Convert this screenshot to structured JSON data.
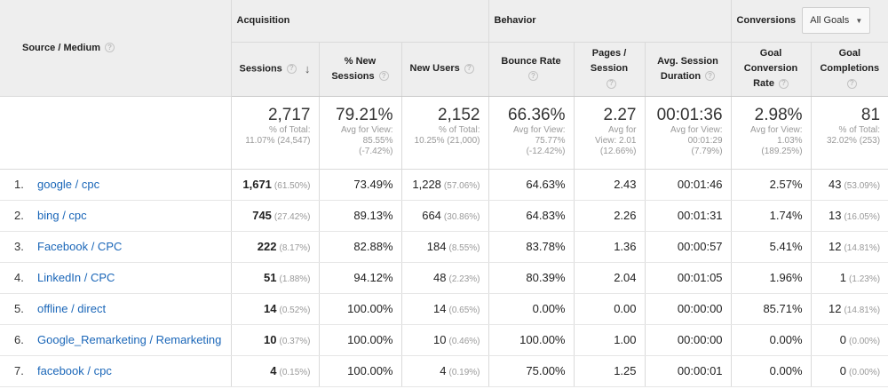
{
  "header": {
    "source_medium": "Source / Medium",
    "acquisition": "Acquisition",
    "behavior": "Behavior",
    "conversions": "Conversions",
    "goal_select_value": "All Goals",
    "columns": {
      "sessions": "Sessions",
      "new_sessions_1": "% New",
      "new_sessions_2": "Sessions",
      "new_users": "New Users",
      "bounce_rate": "Bounce Rate",
      "pages_session_1": "Pages /",
      "pages_session_2": "Session",
      "avg_duration_1": "Avg. Session",
      "avg_duration_2": "Duration",
      "goal_conv_1": "Goal",
      "goal_conv_2": "Conversion",
      "goal_conv_3": "Rate",
      "goal_compl_1": "Goal",
      "goal_compl_2": "Completions"
    }
  },
  "totals": {
    "sessions": {
      "value": "2,717",
      "sub1": "% of Total:",
      "sub2": "11.07% (24,547)"
    },
    "new_sessions": {
      "value": "79.21%",
      "sub1": "Avg for View:",
      "sub2": "85.55%",
      "sub3": "(-7.42%)"
    },
    "new_users": {
      "value": "2,152",
      "sub1": "% of Total:",
      "sub2": "10.25% (21,000)"
    },
    "bounce_rate": {
      "value": "66.36%",
      "sub1": "Avg for View:",
      "sub2": "75.77%",
      "sub3": "(-12.42%)"
    },
    "pages_session": {
      "value": "2.27",
      "sub1": "Avg for",
      "sub2": "View: 2.01",
      "sub3": "(12.66%)"
    },
    "avg_duration": {
      "value": "00:01:36",
      "sub1": "Avg for View:",
      "sub2": "00:01:29",
      "sub3": "(7.79%)"
    },
    "goal_conv": {
      "value": "2.98%",
      "sub1": "Avg for View:",
      "sub2": "1.03%",
      "sub3": "(189.25%)"
    },
    "goal_compl": {
      "value": "81",
      "sub1": "% of Total:",
      "sub2": "32.02% (253)"
    }
  },
  "rows": [
    {
      "num": "1.",
      "source": "google / cpc",
      "sessions": "1,671",
      "sessions_pct": "(61.50%)",
      "new_sessions": "73.49%",
      "new_users": "1,228",
      "new_users_pct": "(57.06%)",
      "bounce": "64.63%",
      "pages": "2.43",
      "duration": "00:01:46",
      "conv_rate": "2.57%",
      "completions": "43",
      "completions_pct": "(53.09%)"
    },
    {
      "num": "2.",
      "source": "bing / cpc",
      "sessions": "745",
      "sessions_pct": "(27.42%)",
      "new_sessions": "89.13%",
      "new_users": "664",
      "new_users_pct": "(30.86%)",
      "bounce": "64.83%",
      "pages": "2.26",
      "duration": "00:01:31",
      "conv_rate": "1.74%",
      "completions": "13",
      "completions_pct": "(16.05%)"
    },
    {
      "num": "3.",
      "source": "Facebook / CPC",
      "sessions": "222",
      "sessions_pct": "(8.17%)",
      "new_sessions": "82.88%",
      "new_users": "184",
      "new_users_pct": "(8.55%)",
      "bounce": "83.78%",
      "pages": "1.36",
      "duration": "00:00:57",
      "conv_rate": "5.41%",
      "completions": "12",
      "completions_pct": "(14.81%)"
    },
    {
      "num": "4.",
      "source": "LinkedIn / CPC",
      "sessions": "51",
      "sessions_pct": "(1.88%)",
      "new_sessions": "94.12%",
      "new_users": "48",
      "new_users_pct": "(2.23%)",
      "bounce": "80.39%",
      "pages": "2.04",
      "duration": "00:01:05",
      "conv_rate": "1.96%",
      "completions": "1",
      "completions_pct": "(1.23%)"
    },
    {
      "num": "5.",
      "source": "offline / direct",
      "sessions": "14",
      "sessions_pct": "(0.52%)",
      "new_sessions": "100.00%",
      "new_users": "14",
      "new_users_pct": "(0.65%)",
      "bounce": "0.00%",
      "pages": "0.00",
      "duration": "00:00:00",
      "conv_rate": "85.71%",
      "completions": "12",
      "completions_pct": "(14.81%)"
    },
    {
      "num": "6.",
      "source": "Google_Remarketing / Remarketing",
      "sessions": "10",
      "sessions_pct": "(0.37%)",
      "new_sessions": "100.00%",
      "new_users": "10",
      "new_users_pct": "(0.46%)",
      "bounce": "100.00%",
      "pages": "1.00",
      "duration": "00:00:00",
      "conv_rate": "0.00%",
      "completions": "0",
      "completions_pct": "(0.00%)"
    },
    {
      "num": "7.",
      "source": "facebook / cpc",
      "sessions": "4",
      "sessions_pct": "(0.15%)",
      "new_sessions": "100.00%",
      "new_users": "4",
      "new_users_pct": "(0.19%)",
      "bounce": "75.00%",
      "pages": "1.25",
      "duration": "00:00:01",
      "conv_rate": "0.00%",
      "completions": "0",
      "completions_pct": "(0.00%)"
    }
  ]
}
